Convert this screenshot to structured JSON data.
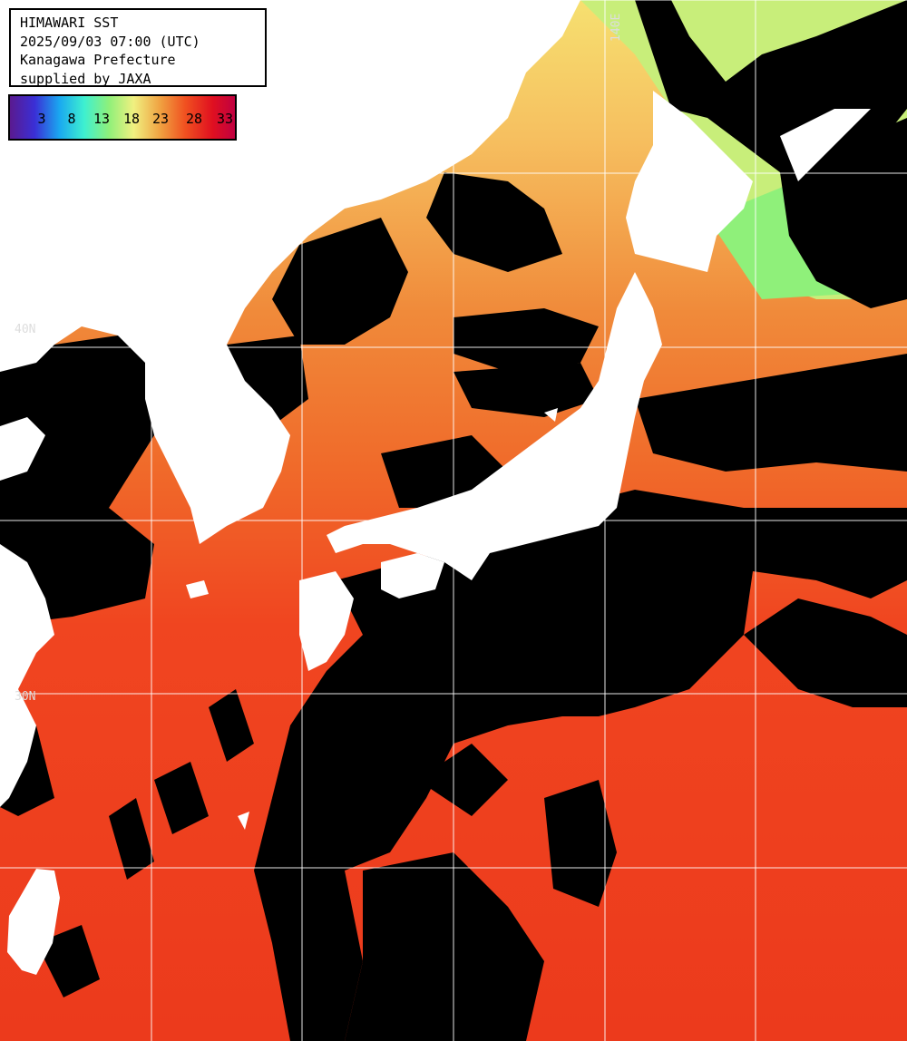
{
  "header": {
    "line1": "HIMAWARI SST",
    "line2": "2025/09/03 07:00 (UTC)",
    "line3": "Kanagawa Prefecture",
    "line4": "supplied by JAXA"
  },
  "color_scale": {
    "ticks": [
      "3",
      "8",
      "13",
      "18",
      "23",
      "28",
      "33"
    ],
    "gradient_colors": [
      "#5a1a8f",
      "#3a2fd6",
      "#1aa8f0",
      "#3ef0d0",
      "#8ff07a",
      "#f0f080",
      "#f0a040",
      "#f05020",
      "#e01020",
      "#c00040"
    ]
  },
  "grid_labels": {
    "lat_upper": "40N",
    "lat_lower": "30N",
    "lon_top": "140E"
  },
  "colors": {
    "land": "#ffffff",
    "cloud": "#000000",
    "grid": "#ffffff"
  }
}
